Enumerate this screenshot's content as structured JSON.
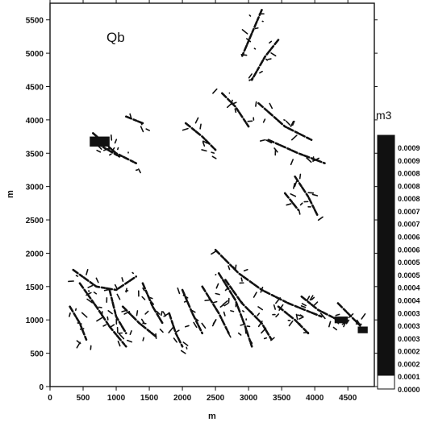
{
  "chart_data": {
    "type": "heatmap",
    "title": "Qb",
    "xlabel": "m",
    "ylabel": "m",
    "xlim": [
      0,
      4900
    ],
    "ylim": [
      0,
      5750
    ],
    "x_ticks": [
      "0",
      "500",
      "1000",
      "1500",
      "2000",
      "2500",
      "3000",
      "3500",
      "4000",
      "4500"
    ],
    "y_ticks": [
      "0",
      "500",
      "1000",
      "1500",
      "2000",
      "2500",
      "3000",
      "3500",
      "4000",
      "4500",
      "5000",
      "5500"
    ],
    "colorbar": {
      "unit": "m3",
      "labels": [
        "0.0009",
        "0.0009",
        "0.0008",
        "0.0008",
        "0.0008",
        "0.0007",
        "0.0007",
        "0.0006",
        "0.0006",
        "0.0005",
        "0.0005",
        "0.0004",
        "0.0004",
        "0.0003",
        "0.0003",
        "0.0003",
        "0.0002",
        "0.0002",
        "0.0001",
        "0.0000"
      ],
      "colors": {
        "high": "#111111",
        "low": "#ffffff"
      }
    },
    "features": {
      "description_units": "m",
      "channels": [
        [
          [
            3200,
            5650
          ],
          [
            3050,
            5300
          ],
          [
            2900,
            4950
          ]
        ],
        [
          [
            3450,
            5200
          ],
          [
            3250,
            4950
          ],
          [
            3050,
            4600
          ]
        ],
        [
          [
            3150,
            4250
          ],
          [
            3550,
            3900
          ],
          [
            3950,
            3700
          ]
        ],
        [
          [
            3300,
            3700
          ],
          [
            3750,
            3500
          ],
          [
            4150,
            3350
          ]
        ],
        [
          [
            650,
            3800
          ],
          [
            1000,
            3500
          ],
          [
            1300,
            3350
          ]
        ],
        [
          [
            700,
            3650
          ],
          [
            1050,
            3450
          ]
        ],
        [
          [
            3700,
            3150
          ],
          [
            3900,
            2850
          ],
          [
            4050,
            2550
          ]
        ],
        [
          [
            3550,
            2900
          ],
          [
            3750,
            2650
          ]
        ],
        [
          [
            2500,
            2050
          ],
          [
            2850,
            1700
          ],
          [
            3200,
            1450
          ],
          [
            3600,
            1250
          ],
          [
            4100,
            1050
          ]
        ],
        [
          [
            2550,
            1700
          ],
          [
            2800,
            1300
          ],
          [
            2950,
            900
          ],
          [
            3050,
            600
          ]
        ],
        [
          [
            2300,
            1500
          ],
          [
            2550,
            1100
          ],
          [
            2700,
            800
          ]
        ],
        [
          [
            2650,
            1600
          ],
          [
            2900,
            1250
          ],
          [
            3200,
            950
          ],
          [
            3350,
            700
          ]
        ],
        [
          [
            3450,
            1200
          ],
          [
            3700,
            1000
          ],
          [
            3900,
            800
          ]
        ],
        [
          [
            3800,
            1350
          ],
          [
            4050,
            1150
          ],
          [
            4350,
            1000
          ]
        ],
        [
          [
            2000,
            1450
          ],
          [
            2150,
            1100
          ],
          [
            2300,
            800
          ]
        ],
        [
          [
            350,
            1750
          ],
          [
            700,
            1500
          ],
          [
            1000,
            1450
          ],
          [
            1300,
            1650
          ]
        ],
        [
          [
            450,
            1550
          ],
          [
            700,
            1200
          ],
          [
            900,
            900
          ],
          [
            1150,
            600
          ]
        ],
        [
          [
            900,
            1450
          ],
          [
            1000,
            1050
          ],
          [
            1150,
            800
          ]
        ],
        [
          [
            1100,
            1200
          ],
          [
            1350,
            950
          ],
          [
            1600,
            750
          ]
        ],
        [
          [
            1400,
            1550
          ],
          [
            1550,
            1200
          ],
          [
            1700,
            950
          ]
        ],
        [
          [
            300,
            1200
          ],
          [
            450,
            950
          ],
          [
            550,
            700
          ]
        ],
        [
          [
            1800,
            1100
          ],
          [
            1900,
            800
          ],
          [
            2000,
            600
          ]
        ],
        [
          [
            4350,
            1250
          ],
          [
            4550,
            1050
          ],
          [
            4700,
            900
          ]
        ],
        [
          [
            2600,
            4400
          ],
          [
            2800,
            4200
          ],
          [
            3000,
            3900
          ]
        ],
        [
          [
            1150,
            4050
          ],
          [
            1400,
            3950
          ]
        ],
        [
          [
            2050,
            3950
          ],
          [
            2300,
            3750
          ],
          [
            2500,
            3550
          ]
        ]
      ],
      "filled_blocks": [
        [
          600,
          3750,
          300,
          150
        ],
        [
          4300,
          1050,
          200,
          100
        ],
        [
          4650,
          900,
          150,
          100
        ]
      ]
    }
  }
}
